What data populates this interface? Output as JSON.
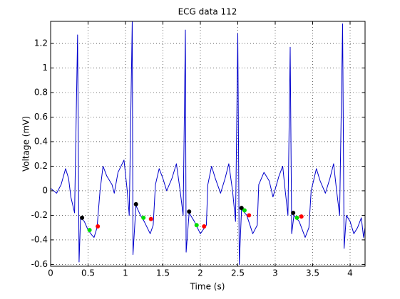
{
  "chart_data": {
    "type": "line",
    "title": "ECG data 112",
    "x_label": "Time (s)",
    "y_label": "Voltage (mV)",
    "xlim": [
      0,
      4.2
    ],
    "ylim": [
      -0.615,
      1.38
    ],
    "xticks": [
      0,
      0.5,
      1,
      1.5,
      2,
      2.5,
      3,
      3.5,
      4
    ],
    "yticks": [
      -0.6,
      -0.4,
      -0.2,
      0,
      0.2,
      0.4,
      0.6,
      0.8,
      1,
      1.2
    ],
    "grid": true,
    "series": [
      {
        "style": "line",
        "color": "#0000cc",
        "x": [
          0,
          0.04,
          0.08,
          0.14,
          0.2,
          0.24,
          0.27,
          0.32,
          0.36,
          0.38,
          0.4,
          0.45,
          0.5,
          0.55,
          0.58,
          0.62,
          0.66,
          0.7,
          0.75,
          0.82,
          0.85,
          0.9,
          0.98,
          1.02,
          1.05,
          1.09,
          1.1,
          1.14,
          1.2,
          1.25,
          1.33,
          1.37,
          1.4,
          1.45,
          1.5,
          1.55,
          1.62,
          1.68,
          1.73,
          1.77,
          1.8,
          1.81,
          1.85,
          1.92,
          2.0,
          2.08,
          2.1,
          2.15,
          2.2,
          2.27,
          2.33,
          2.38,
          2.43,
          2.47,
          2.5,
          2.52,
          2.55,
          2.62,
          2.7,
          2.76,
          2.78,
          2.85,
          2.92,
          2.97,
          3.05,
          3.1,
          3.13,
          3.17,
          3.2,
          3.22,
          3.25,
          3.32,
          3.4,
          3.45,
          3.48,
          3.55,
          3.6,
          3.67,
          3.73,
          3.78,
          3.82,
          3.86,
          3.9,
          3.92,
          3.95,
          4.0,
          4.05,
          4.1,
          4.15,
          4.18,
          4.2
        ],
        "values": [
          0.02,
          0.0,
          -0.02,
          0.05,
          0.18,
          0.1,
          -0.05,
          -0.18,
          1.27,
          -0.58,
          -0.22,
          -0.25,
          -0.32,
          -0.36,
          -0.38,
          -0.3,
          0.0,
          0.2,
          0.12,
          0.05,
          -0.02,
          0.15,
          0.25,
          0.02,
          -0.2,
          1.38,
          -0.52,
          -0.12,
          -0.2,
          -0.25,
          -0.35,
          -0.28,
          0.05,
          0.18,
          0.1,
          0.0,
          0.1,
          0.22,
          0.0,
          -0.2,
          1.31,
          -0.5,
          -0.18,
          -0.25,
          -0.35,
          -0.28,
          0.05,
          0.2,
          0.1,
          -0.02,
          0.1,
          0.22,
          0.0,
          -0.25,
          1.28,
          -0.6,
          -0.15,
          -0.2,
          -0.35,
          -0.28,
          0.05,
          0.15,
          0.08,
          -0.05,
          0.12,
          0.2,
          0.02,
          -0.2,
          1.17,
          -0.35,
          -0.2,
          -0.25,
          -0.38,
          -0.3,
          0.0,
          0.18,
          0.08,
          -0.02,
          0.1,
          0.22,
          0.0,
          -0.2,
          1.36,
          -0.47,
          -0.2,
          -0.25,
          -0.35,
          -0.3,
          -0.22,
          -0.38,
          -0.3
        ]
      },
      {
        "style": "markers",
        "color": "#000000",
        "x": [
          0.42,
          1.14,
          1.85,
          2.55,
          3.24
        ],
        "values": [
          -0.22,
          -0.11,
          -0.17,
          -0.14,
          -0.18
        ]
      },
      {
        "style": "markers",
        "color": "#00dd00",
        "x": [
          0.52,
          1.24,
          1.95,
          2.59,
          3.29
        ],
        "values": [
          -0.32,
          -0.22,
          -0.28,
          -0.16,
          -0.22
        ]
      },
      {
        "style": "markers",
        "color": "#ff0000",
        "x": [
          0.63,
          1.34,
          2.05,
          2.65,
          3.35
        ],
        "values": [
          -0.29,
          -0.23,
          -0.29,
          -0.2,
          -0.21
        ]
      }
    ]
  }
}
